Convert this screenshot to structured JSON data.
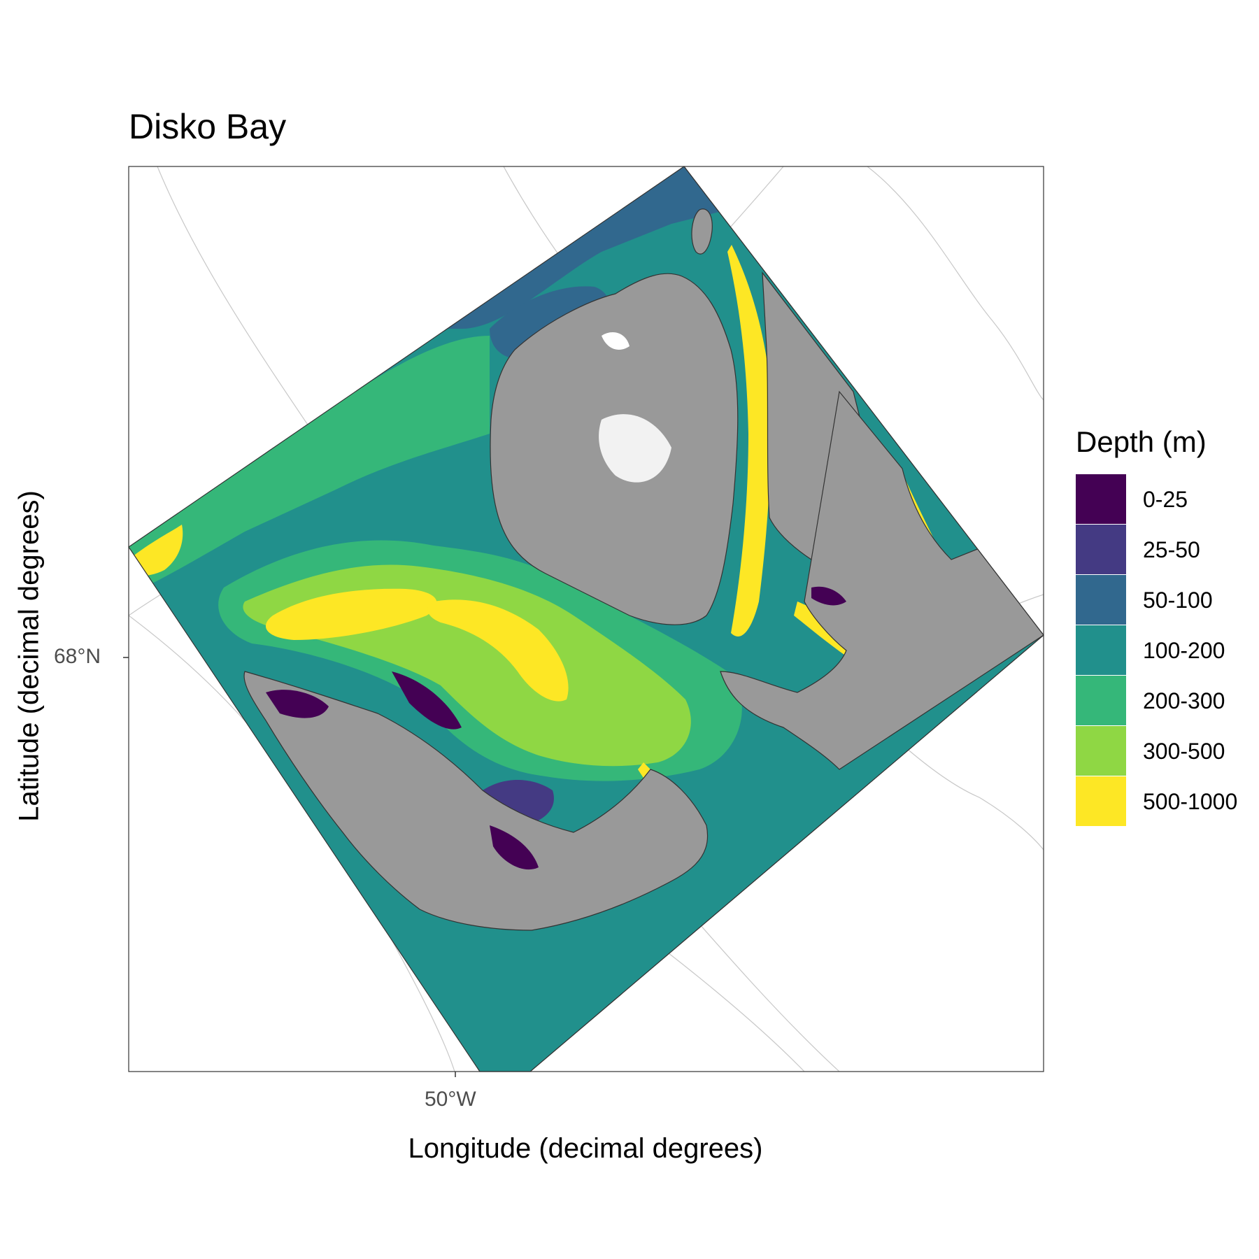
{
  "title": "Disko Bay",
  "x_axis": {
    "label": "Longitude (decimal degrees)",
    "ticks": [
      "50°W"
    ]
  },
  "y_axis": {
    "label": "Latitude (decimal degrees)",
    "ticks": [
      "68°N"
    ]
  },
  "legend": {
    "title": "Depth (m)",
    "items": [
      {
        "label": "0-25",
        "color": "#440154"
      },
      {
        "label": "25-50",
        "color": "#443A83"
      },
      {
        "label": "50-100",
        "color": "#31688E"
      },
      {
        "label": "100-200",
        "color": "#21908C"
      },
      {
        "label": "200-300",
        "color": "#35B779"
      },
      {
        "label": "300-500",
        "color": "#8FD744"
      },
      {
        "label": "500-1000",
        "color": "#FDE725"
      }
    ]
  },
  "colors": {
    "land": "#999999",
    "ice": "#f2f2f2",
    "shallow_white": "#ffffff",
    "graticule": "#c8c8c8"
  }
}
